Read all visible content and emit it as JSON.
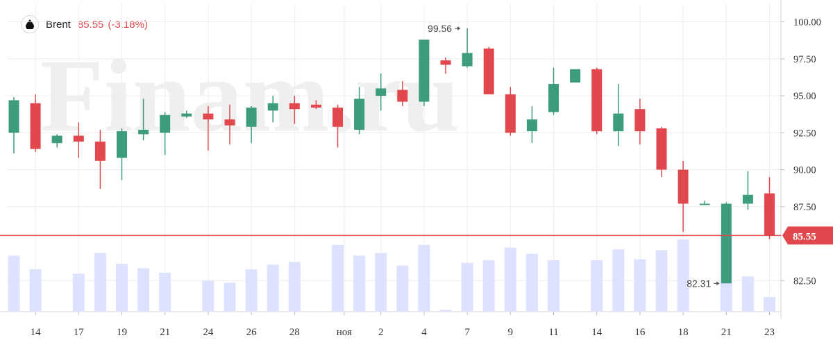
{
  "chart_data": {
    "type": "candlestick",
    "instrument": "Brent",
    "last_price": "85.55",
    "last_change": "(-3.18%)",
    "watermark": "Finam.ru",
    "y_axis": {
      "range": [
        80.4,
        101.2
      ],
      "ticks": [
        100.0,
        97.5,
        95.0,
        92.5,
        90.0,
        87.5,
        82.5
      ],
      "tick_labels": [
        "100.00",
        "97.50",
        "95.00",
        "92.50",
        "90.00",
        "87.50",
        "82.50"
      ]
    },
    "x_labels": [
      {
        "text": "14",
        "at": 1
      },
      {
        "text": "17",
        "at": 3
      },
      {
        "text": "19",
        "at": 5
      },
      {
        "text": "21",
        "at": 7
      },
      {
        "text": "24",
        "at": 9
      },
      {
        "text": "26",
        "at": 11
      },
      {
        "text": "28",
        "at": 13
      },
      {
        "text": "ноя",
        "at": 15.3
      },
      {
        "text": "2",
        "at": 17
      },
      {
        "text": "4",
        "at": 19
      },
      {
        "text": "7",
        "at": 21
      },
      {
        "text": "9",
        "at": 23
      },
      {
        "text": "11",
        "at": 25
      },
      {
        "text": "14",
        "at": 27
      },
      {
        "text": "16",
        "at": 29
      },
      {
        "text": "18",
        "at": 31
      },
      {
        "text": "21",
        "at": 33
      },
      {
        "text": "23",
        "at": 35
      }
    ],
    "candles": [
      {
        "o": 92.5,
        "h": 94.9,
        "l": 91.1,
        "c": 94.7
      },
      {
        "o": 94.5,
        "h": 95.1,
        "l": 91.2,
        "c": 91.4
      },
      {
        "o": 91.8,
        "h": 92.4,
        "l": 91.5,
        "c": 92.3
      },
      {
        "o": 92.3,
        "h": 93.2,
        "l": 90.8,
        "c": 91.9
      },
      {
        "o": 91.9,
        "h": 92.7,
        "l": 88.7,
        "c": 90.6
      },
      {
        "o": 90.8,
        "h": 92.8,
        "l": 89.3,
        "c": 92.6
      },
      {
        "o": 92.4,
        "h": 94.8,
        "l": 92.0,
        "c": 92.7
      },
      {
        "o": 92.5,
        "h": 93.9,
        "l": 91.0,
        "c": 93.7
      },
      {
        "o": 93.6,
        "h": 94.0,
        "l": 93.5,
        "c": 93.8
      },
      {
        "o": 93.8,
        "h": 94.3,
        "l": 91.3,
        "c": 93.4
      },
      {
        "o": 93.4,
        "h": 94.4,
        "l": 91.7,
        "c": 93.0
      },
      {
        "o": 92.9,
        "h": 94.3,
        "l": 91.8,
        "c": 94.2
      },
      {
        "o": 94.0,
        "h": 95.0,
        "l": 93.2,
        "c": 94.5
      },
      {
        "o": 94.5,
        "h": 95.0,
        "l": 93.1,
        "c": 94.1
      },
      {
        "o": 94.4,
        "h": 94.7,
        "l": 94.1,
        "c": 94.2
      },
      {
        "o": 94.2,
        "h": 94.4,
        "l": 91.5,
        "c": 92.9
      },
      {
        "o": 92.7,
        "h": 95.6,
        "l": 92.4,
        "c": 94.8
      },
      {
        "o": 95.0,
        "h": 96.5,
        "l": 94.0,
        "c": 95.5
      },
      {
        "o": 95.4,
        "h": 96.0,
        "l": 94.3,
        "c": 94.6
      },
      {
        "o": 94.6,
        "h": 98.8,
        "l": 94.3,
        "c": 98.8
      },
      {
        "o": 97.4,
        "h": 97.6,
        "l": 96.5,
        "c": 97.1
      },
      {
        "o": 97.0,
        "h": 99.56,
        "l": 96.9,
        "c": 97.9
      },
      {
        "o": 98.2,
        "h": 98.3,
        "l": 95.1,
        "c": 95.1
      },
      {
        "o": 95.1,
        "h": 95.6,
        "l": 92.3,
        "c": 92.5
      },
      {
        "o": 92.6,
        "h": 94.3,
        "l": 91.8,
        "c": 93.4
      },
      {
        "o": 93.9,
        "h": 96.9,
        "l": 93.7,
        "c": 95.8
      },
      {
        "o": 95.9,
        "h": 96.8,
        "l": 95.9,
        "c": 96.8
      },
      {
        "o": 96.8,
        "h": 96.9,
        "l": 92.4,
        "c": 92.6
      },
      {
        "o": 92.6,
        "h": 95.8,
        "l": 91.6,
        "c": 93.8
      },
      {
        "o": 94.1,
        "h": 94.8,
        "l": 91.7,
        "c": 92.6
      },
      {
        "o": 92.8,
        "h": 92.9,
        "l": 89.5,
        "c": 90.0
      },
      {
        "o": 90.0,
        "h": 90.6,
        "l": 85.8,
        "c": 87.7
      },
      {
        "o": 87.7,
        "h": 87.9,
        "l": 87.6,
        "c": 87.7
      },
      {
        "o": 82.31,
        "h": 87.8,
        "l": 82.31,
        "c": 87.7
      },
      {
        "o": 87.7,
        "h": 89.9,
        "l": 87.3,
        "c": 88.3
      },
      {
        "o": 88.4,
        "h": 89.5,
        "l": 85.3,
        "c": 85.55
      }
    ],
    "volume": [
      0.62,
      0.47,
      0,
      0.42,
      0.65,
      0.53,
      0.48,
      0.43,
      0,
      0.34,
      0.32,
      0.47,
      0.52,
      0.55,
      0,
      0.74,
      0.62,
      0.65,
      0.51,
      0.74,
      0.02,
      0.54,
      0.57,
      0.71,
      0.64,
      0.57,
      0,
      0.57,
      0.69,
      0.58,
      0.68,
      0.8,
      0,
      0.84,
      0.39,
      0.16
    ],
    "annotations": [
      {
        "text": "99.56",
        "candle": 21,
        "price": 99.56,
        "side": "left"
      },
      {
        "text": "82.31",
        "candle": 33,
        "price": 82.31,
        "side": "left"
      }
    ],
    "current_price_line": {
      "price": 85.55,
      "label": "85.55"
    },
    "colors": {
      "up": "#3d9c7e",
      "down": "#e0484d",
      "volume": "#dde3ff",
      "grid": "#ececec",
      "price_line": "#e0484d",
      "watermark": "#efefef"
    },
    "grid": true
  }
}
